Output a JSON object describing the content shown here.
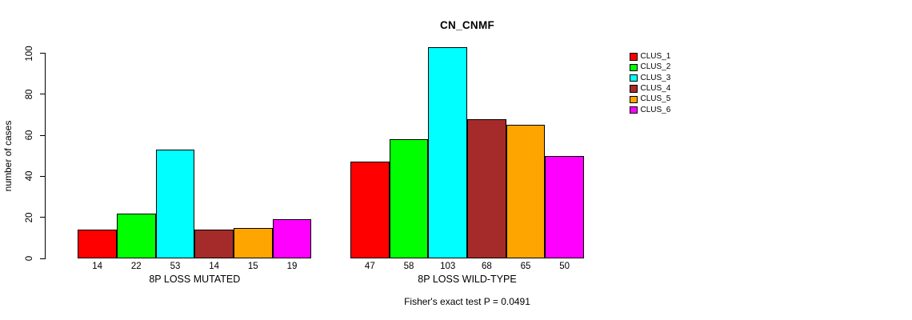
{
  "title": "CN_CNMF",
  "footnote": "Fisher's exact test P = 0.0491",
  "chart_data": {
    "type": "bar",
    "title": "CN_CNMF",
    "xlabel": "",
    "ylabel": "number of cases",
    "ylim": [
      0,
      100
    ],
    "yticks": [
      0,
      20,
      40,
      60,
      80,
      100
    ],
    "grid": false,
    "legend_position": "right",
    "series": [
      {
        "name": "CLUS_1",
        "color": "#FF0000"
      },
      {
        "name": "CLUS_2",
        "color": "#00FF00"
      },
      {
        "name": "CLUS_3",
        "color": "#00FFFF"
      },
      {
        "name": "CLUS_4",
        "color": "#A52A2A"
      },
      {
        "name": "CLUS_5",
        "color": "#FFA500"
      },
      {
        "name": "CLUS_6",
        "color": "#FF00FF"
      }
    ],
    "groups": [
      {
        "label": "8P LOSS MUTATED",
        "values": [
          14,
          22,
          53,
          14,
          15,
          19
        ]
      },
      {
        "label": "8P LOSS WILD-TYPE",
        "values": [
          47,
          58,
          103,
          68,
          65,
          50
        ]
      }
    ],
    "bar_value_labels_shown": true,
    "annotation": "Fisher's exact test P = 0.0491"
  }
}
